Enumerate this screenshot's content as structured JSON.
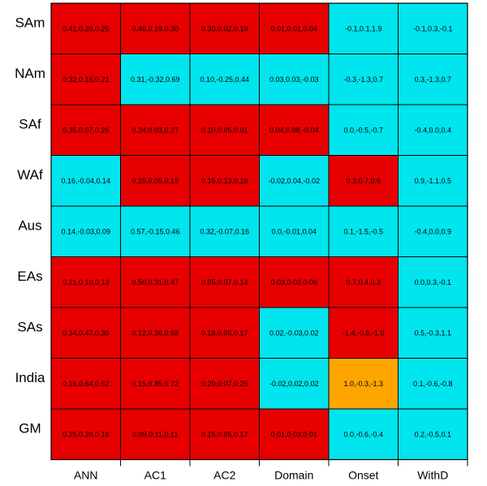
{
  "colors": {
    "red": "#e80000",
    "cyan": "#00e5ee",
    "orange": "#ffa500",
    "border": "#000000"
  },
  "chart_data": {
    "type": "heatmap",
    "rows": [
      "SAm",
      "NAm",
      "SAf",
      "WAf",
      "Aus",
      "EAs",
      "SAs",
      "India",
      "GM"
    ],
    "columns": [
      "ANN",
      "AC1",
      "AC2",
      "Domain",
      "Onset",
      "WithD"
    ],
    "cells": [
      [
        {
          "text": "0.41,0.20,0.25",
          "color": "red"
        },
        {
          "text": "0.46,0.19,0.30",
          "color": "red"
        },
        {
          "text": "0.30,0.02,0.19",
          "color": "red"
        },
        {
          "text": "0.01,0.01,0.04",
          "color": "red"
        },
        {
          "text": "-0.1,0.1,1.9",
          "color": "cyan"
        },
        {
          "text": "-0.1,0.3,-0.1",
          "color": "cyan"
        }
      ],
      [
        {
          "text": "0.32,0.16,0.21",
          "color": "red"
        },
        {
          "text": "0.31,-0.32,0.69",
          "color": "cyan"
        },
        {
          "text": "0.10,-0.25,0.44",
          "color": "cyan"
        },
        {
          "text": "0.03,0.03,-0.03",
          "color": "cyan"
        },
        {
          "text": "-0.3,-1.3,0.7",
          "color": "cyan"
        },
        {
          "text": "0.3,-1.3,0.7",
          "color": "cyan"
        }
      ],
      [
        {
          "text": "0.35,0.07,0.26",
          "color": "red"
        },
        {
          "text": "0.24,0.03,0.27",
          "color": "red"
        },
        {
          "text": "0.10,0.05,0.01",
          "color": "red"
        },
        {
          "text": "0.04,0.08,-0.04",
          "color": "red"
        },
        {
          "text": "0.0,-0.5,-0.7",
          "color": "cyan"
        },
        {
          "text": "-0.4,0.0,0.4",
          "color": "cyan"
        }
      ],
      [
        {
          "text": "0.16,-0.04,0.14",
          "color": "cyan"
        },
        {
          "text": "0.25,0.05,0.19",
          "color": "red"
        },
        {
          "text": "0.15,0.13,0.18",
          "color": "red"
        },
        {
          "text": "-0.02,0.04,-0.02",
          "color": "cyan"
        },
        {
          "text": "0.3,0.7,0.6",
          "color": "red"
        },
        {
          "text": "0.9,-1.1,0.5",
          "color": "cyan"
        }
      ],
      [
        {
          "text": "0.14,-0.03,0.09",
          "color": "cyan"
        },
        {
          "text": "0.57,-0.15,0.46",
          "color": "cyan"
        },
        {
          "text": "0.32,-0.07,0.16",
          "color": "cyan"
        },
        {
          "text": "0.0,-0.01,0.04",
          "color": "cyan"
        },
        {
          "text": "0.1,-1.5,-0.5",
          "color": "cyan"
        },
        {
          "text": "-0.4,0.0,0.9",
          "color": "cyan"
        }
      ],
      [
        {
          "text": "0.21,0.10,0.13",
          "color": "red"
        },
        {
          "text": "0.50,0.31,0.47",
          "color": "red"
        },
        {
          "text": "0.05,0.07,0.14",
          "color": "red"
        },
        {
          "text": "0.03,0.02,0.06",
          "color": "red"
        },
        {
          "text": "0.7,0.4,0.3",
          "color": "red"
        },
        {
          "text": "0.0,0.3,-0.1",
          "color": "cyan"
        }
      ],
      [
        {
          "text": "0.34,0.47,0.30",
          "color": "red"
        },
        {
          "text": "0.12,0.36,0.68",
          "color": "red"
        },
        {
          "text": "0.18,0.05,0.17",
          "color": "red"
        },
        {
          "text": "0.02,-0.03,0.02",
          "color": "cyan"
        },
        {
          "text": "-1.4,-0.6,-1.0",
          "color": "red"
        },
        {
          "text": "0.5,-0.3,1.1",
          "color": "cyan"
        }
      ],
      [
        {
          "text": "0.16,0.64,0.52",
          "color": "red"
        },
        {
          "text": "0.15,0.85,0.72",
          "color": "red"
        },
        {
          "text": "0.20,0.07,0.25",
          "color": "red"
        },
        {
          "text": "-0.02,0.02,0.02",
          "color": "cyan"
        },
        {
          "text": "1.0,-0.3,-1.3",
          "color": "orange"
        },
        {
          "text": "0.1,-0.6,-0.8",
          "color": "cyan"
        }
      ],
      [
        {
          "text": "0.25,0.20,0.16",
          "color": "red"
        },
        {
          "text": "0.09,0.11,0.11",
          "color": "red"
        },
        {
          "text": "0.15,0.05,0.17",
          "color": "red"
        },
        {
          "text": "0.01,0.03,0.01",
          "color": "red"
        },
        {
          "text": "0.0,-0.6,-0.4",
          "color": "cyan"
        },
        {
          "text": "0.2,-0.5,0.1",
          "color": "cyan"
        }
      ]
    ]
  }
}
